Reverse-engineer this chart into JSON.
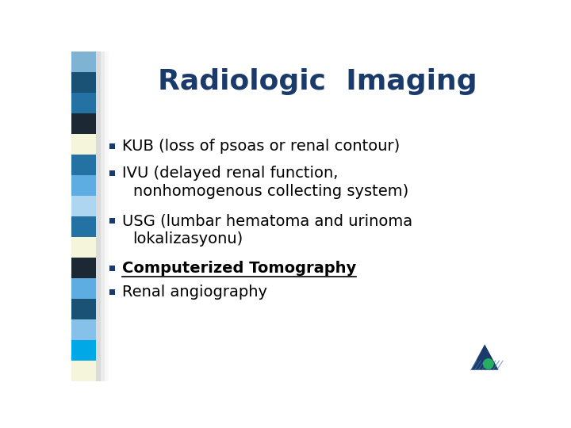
{
  "title": "Radiologic  Imaging",
  "title_color": "#1a3a6b",
  "title_fontsize": 26,
  "background_color": "#ffffff",
  "bullet_color": "#1a3a6b",
  "text_color": "#000000",
  "bullet_items": [
    {
      "text": "KUB (loss of psoas or renal contour)",
      "underline": false,
      "bold": false,
      "has_bullet": true
    },
    {
      "text": "IVU (delayed renal function,",
      "underline": false,
      "bold": false,
      "has_bullet": true
    },
    {
      "text": "nonhomogenous collecting system)",
      "underline": false,
      "bold": false,
      "has_bullet": false
    },
    {
      "text": "USG (lumbar hematoma and urinoma",
      "underline": false,
      "bold": false,
      "has_bullet": true
    },
    {
      "text": "lokalizasyonu)",
      "underline": false,
      "bold": false,
      "has_bullet": false
    },
    {
      "text": "Computerized Tomography",
      "underline": true,
      "bold": true,
      "has_bullet": true
    },
    {
      "text": "Renal angiography",
      "underline": false,
      "bold": false,
      "has_bullet": true
    }
  ],
  "side_bar_colors": [
    "#7fb3d3",
    "#1a5276",
    "#2471a3",
    "#1c2833",
    "#f5f5dc",
    "#2471a3",
    "#5dade2",
    "#aed6f1",
    "#2471a3",
    "#f5f5dc",
    "#1c2833",
    "#5dade2",
    "#1a5276",
    "#85c1e9",
    "#00a8e8",
    "#f5f5dc"
  ],
  "text_fontsize": 14,
  "font_family": "DejaVu Sans"
}
